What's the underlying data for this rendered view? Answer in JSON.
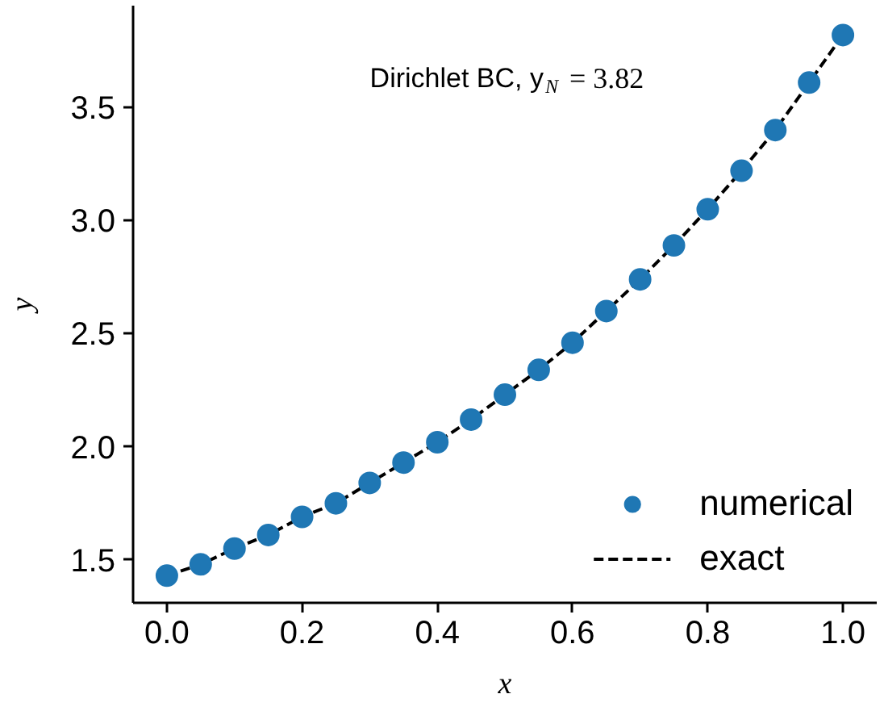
{
  "chart_data": {
    "type": "scatter",
    "xlabel": "x",
    "ylabel": "y",
    "annotations": [
      "Dirichlet BC, y$_{N}$ = 3.82"
    ],
    "x": [
      0,
      0.05,
      0.1,
      0.15,
      0.2,
      0.25,
      0.3,
      0.35,
      0.4,
      0.45,
      0.5,
      0.55,
      0.6,
      0.65,
      0.7,
      0.75,
      0.8,
      0.85,
      0.9,
      0.95,
      1.0
    ],
    "series": [
      {
        "name": "numerical",
        "type": "scatter",
        "marker": "circle",
        "color": "#1f77b4",
        "values": [
          1.43,
          1.48,
          1.55,
          1.61,
          1.69,
          1.75,
          1.84,
          1.93,
          2.02,
          2.12,
          2.23,
          2.34,
          2.46,
          2.6,
          2.74,
          2.89,
          3.05,
          3.22,
          3.4,
          3.61,
          3.82
        ]
      },
      {
        "name": "exact",
        "type": "line",
        "line_style": "dashed",
        "color": "#000000",
        "values": [
          1.43,
          1.48,
          1.55,
          1.61,
          1.69,
          1.75,
          1.84,
          1.93,
          2.02,
          2.12,
          2.23,
          2.34,
          2.46,
          2.6,
          2.74,
          2.89,
          3.05,
          3.22,
          3.4,
          3.61,
          3.82
        ]
      }
    ],
    "xlim": [
      -0.05,
      1.05
    ],
    "ylim": [
      1.31,
      3.95
    ],
    "xticks": [
      {
        "value": 0,
        "label": "0.0"
      },
      0.2,
      0.4,
      0.6,
      0.8,
      {
        "value": 1,
        "label": "1.0"
      }
    ],
    "yticks": [
      1.5,
      {
        "value": 2,
        "label": "2.0"
      },
      2.5,
      {
        "value": 3,
        "label": "3.0"
      },
      3.5
    ],
    "legend": "bottom right"
  }
}
